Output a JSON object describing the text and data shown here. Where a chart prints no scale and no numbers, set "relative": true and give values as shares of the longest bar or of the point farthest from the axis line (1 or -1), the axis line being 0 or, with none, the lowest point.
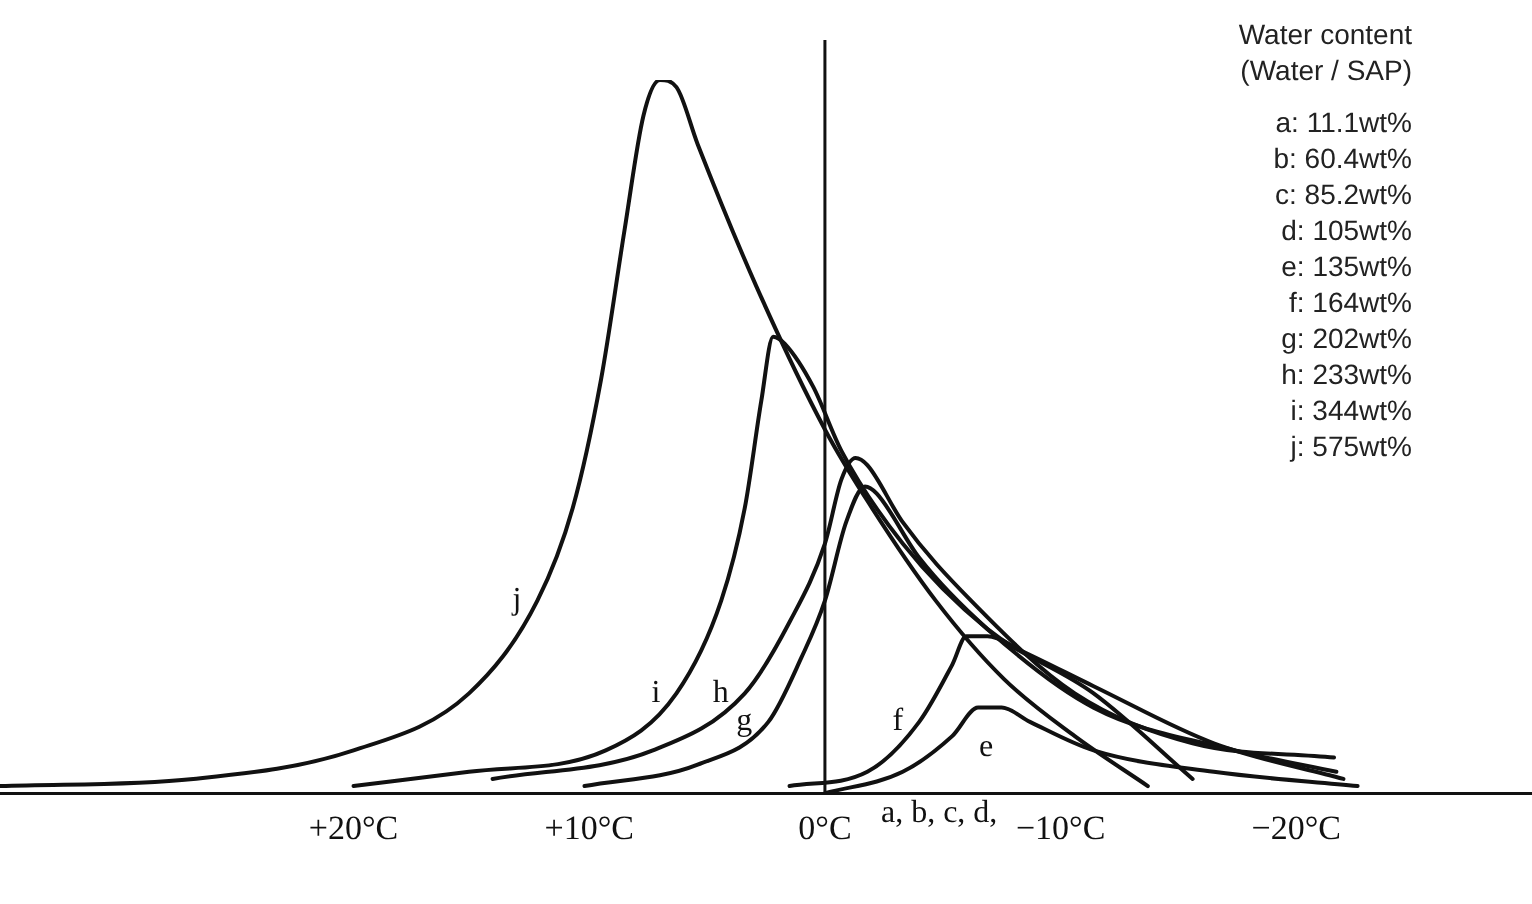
{
  "chart_data": {
    "type": "line",
    "relative": true,
    "legend_title": "Water content (Water / SAP)",
    "xlim": [
      35,
      -30
    ],
    "xticks": [
      {
        "value": 20,
        "label": "+20°C"
      },
      {
        "value": 10,
        "label": "+10°C"
      },
      {
        "value": 0,
        "label": "0°C"
      },
      {
        "value": -10,
        "label": "−10°C"
      },
      {
        "value": -20,
        "label": "−20°C"
      }
    ],
    "grid": false,
    "marker": "none",
    "line_style": "solid",
    "ref_lines": [
      {
        "axis": "x",
        "value": 0,
        "color": "#111111"
      }
    ],
    "series": [
      {
        "name": "j",
        "color": "#111111",
        "x": [
          35,
          26.8,
          20.0,
          15.1,
          12.2,
          10.7,
          9.5,
          8.5,
          7.7,
          7.0,
          6.3,
          5.4,
          2.9,
          0,
          -1.8,
          -4.7,
          -7.6,
          -10.6,
          -13.7
        ],
        "values": [
          0.01,
          0.02,
          0.06,
          0.14,
          0.27,
          0.4,
          0.58,
          0.79,
          0.95,
          1,
          0.99,
          0.91,
          0.71,
          0.51,
          0.41,
          0.27,
          0.16,
          0.08,
          0.01
        ]
      },
      {
        "name": "i",
        "color": "#111111",
        "x": [
          20.0,
          15.1,
          9.3,
          6.3,
          4.4,
          3.4,
          2.7,
          2.2,
          1.7,
          0.5,
          -0.7,
          -3.3,
          -6.9,
          -11.4,
          -15.6
        ],
        "values": [
          0.01,
          0.03,
          0.06,
          0.14,
          0.27,
          0.4,
          0.55,
          0.64,
          0.63,
          0.57,
          0.48,
          0.35,
          0.23,
          0.14,
          0.02
        ]
      },
      {
        "name": "h",
        "color": "#111111",
        "x": [
          14.1,
          7.3,
          3.4,
          1.5,
          0,
          -0.7,
          -1.3,
          -1.8,
          -3.3,
          -6.2,
          -10.6,
          -15.6,
          -21.6
        ],
        "values": [
          0.02,
          0.06,
          0.14,
          0.24,
          0.35,
          0.44,
          0.47,
          0.46,
          0.38,
          0.27,
          0.14,
          0.07,
          0.05
        ]
      },
      {
        "name": "g",
        "color": "#111111",
        "x": [
          10.2,
          5.4,
          2.4,
          1.0,
          0,
          -0.9,
          -1.7,
          -2.2,
          -4.0,
          -6.9,
          -11.4,
          -17.4,
          -21.7
        ],
        "values": [
          0.01,
          0.04,
          0.1,
          0.19,
          0.27,
          0.38,
          0.43,
          0.42,
          0.33,
          0.23,
          0.12,
          0.06,
          0.03
        ]
      },
      {
        "name": "f",
        "color": "#111111",
        "x": [
          1.5,
          -1.8,
          -4.0,
          -5.4,
          -6.0,
          -6.9,
          -8.3,
          -11.4,
          -16.5,
          -22.0
        ],
        "values": [
          0.01,
          0.03,
          0.1,
          0.18,
          0.22,
          0.22,
          0.2,
          0.15,
          0.07,
          0.02
        ]
      },
      {
        "name": "e",
        "color": "#111111",
        "x": [
          0,
          -3.3,
          -5.4,
          -6.5,
          -7.5,
          -8.7,
          -11.4,
          -16.5,
          -22.6
        ],
        "values": [
          0,
          0.03,
          0.08,
          0.12,
          0.12,
          0.1,
          0.06,
          0.03,
          0.01
        ]
      }
    ],
    "annotations": [
      "a, b, c, d,",
      "a: 11.1wt%",
      "b: 60.4wt%",
      "c: 85.2wt%",
      "d: 105wt%",
      "e: 135wt%",
      "f: 164wt%",
      "g: 202wt%",
      "h: 233wt%",
      "i: 344wt%",
      "j: 575wt%"
    ]
  }
}
